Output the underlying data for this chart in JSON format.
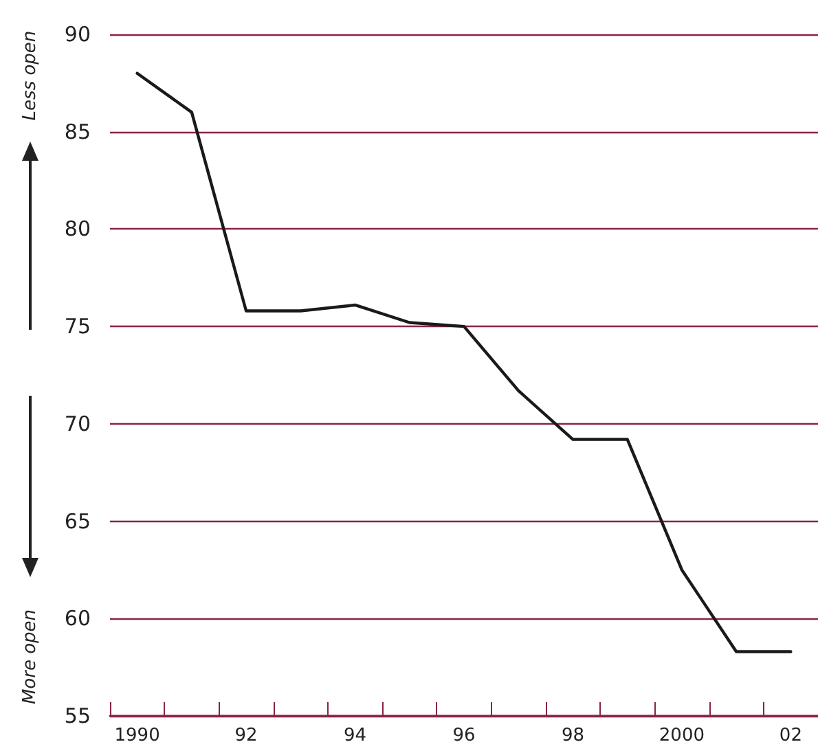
{
  "chart_data": {
    "type": "line",
    "categories": [
      "1990",
      null,
      "92",
      null,
      "94",
      null,
      "96",
      null,
      "98",
      null,
      "2000",
      null,
      "02"
    ],
    "series": [
      {
        "color": "#1a1a1a",
        "values": [
          88,
          86,
          75.8,
          75.8,
          76.1,
          75.2,
          75.0,
          71.7,
          69.2,
          69.2,
          62.5,
          58.3,
          58.3
        ]
      }
    ],
    "ylim": [
      55,
      90
    ],
    "yticks": [
      55,
      60,
      65,
      70,
      75,
      80,
      85,
      90
    ],
    "grid": "y",
    "marker": "none",
    "line_style": "solid",
    "annotations": [
      "Less open",
      "More open"
    ]
  }
}
